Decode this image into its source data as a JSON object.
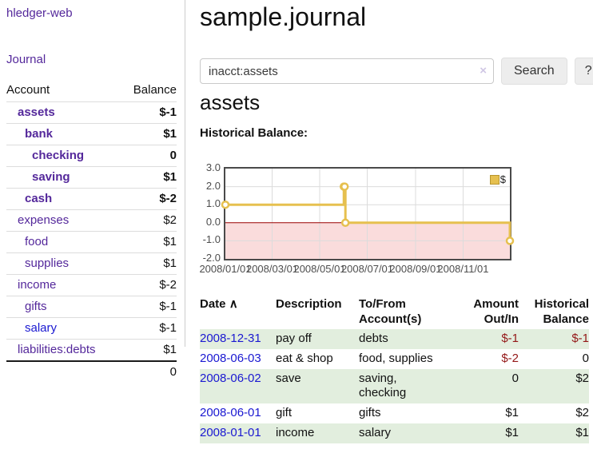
{
  "palette": {
    "link_purple": "#54289b",
    "link_blue": "#1a18d1",
    "negative_red": "#941818",
    "rose": "#b36b6d",
    "row_stripe_green": "#e2eede",
    "chart_gold": "#e6c04f",
    "chart_negative_fill": "#fadcdc",
    "chart_zero_line": "#990000"
  },
  "sidebar": {
    "brand": "hledger-web",
    "journal_link": "Journal",
    "accounts": {
      "headers": {
        "account": "Account",
        "balance": "Balance"
      },
      "rows": [
        {
          "label": "assets",
          "depth": 1,
          "bold": true,
          "link_color": "purple",
          "balance": "$-1",
          "balance_color": "neg"
        },
        {
          "label": "bank",
          "depth": 2,
          "bold": true,
          "link_color": "purple",
          "balance": "$1",
          "balance_color": ""
        },
        {
          "label": "checking",
          "depth": 3,
          "bold": true,
          "link_color": "purple",
          "balance": "0",
          "balance_color": ""
        },
        {
          "label": "saving",
          "depth": 3,
          "bold": true,
          "link_color": "purple",
          "balance": "$1",
          "balance_color": ""
        },
        {
          "label": "cash",
          "depth": 2,
          "bold": true,
          "link_color": "purple",
          "balance": "$-2",
          "balance_color": "neg"
        },
        {
          "label": "expenses",
          "depth": 1,
          "bold": false,
          "link_color": "purple",
          "balance": "$2",
          "balance_color": ""
        },
        {
          "label": "food",
          "depth": 2,
          "bold": false,
          "link_color": "purple",
          "balance": "$1",
          "balance_color": ""
        },
        {
          "label": "supplies",
          "depth": 2,
          "bold": false,
          "link_color": "purple",
          "balance": "$1",
          "balance_color": ""
        },
        {
          "label": "income",
          "depth": 1,
          "bold": false,
          "link_color": "purple",
          "balance": "$-2",
          "balance_color": "rose"
        },
        {
          "label": "gifts",
          "depth": 2,
          "bold": false,
          "link_color": "purple",
          "balance": "$-1",
          "balance_color": "rose"
        },
        {
          "label": "salary",
          "depth": 2,
          "bold": false,
          "link_color": "blue",
          "balance": "$-1",
          "balance_color": "rose"
        },
        {
          "label": "liabilities:debts",
          "depth": 1,
          "bold": false,
          "link_color": "purple",
          "balance": "$1",
          "balance_color": ""
        }
      ],
      "total": "0"
    }
  },
  "main": {
    "title": "sample.journal",
    "search": {
      "value": "inacct:assets",
      "clear_icon": "×",
      "search_button": "Search",
      "help_button": "?"
    },
    "account_heading": "assets",
    "section_label": "Historical Balance:"
  },
  "chart_data": {
    "type": "line",
    "step": true,
    "title": "Historical Balance",
    "legend": [
      {
        "label": "$",
        "color": "#e6c04f"
      }
    ],
    "series": [
      {
        "name": "$",
        "points": [
          {
            "date": "2008-01-01",
            "value": 1
          },
          {
            "date": "2008-06-01",
            "value": 2
          },
          {
            "date": "2008-06-02",
            "value": 2
          },
          {
            "date": "2008-06-03",
            "value": 0
          },
          {
            "date": "2008-12-31",
            "value": -1
          }
        ]
      }
    ],
    "x_range": [
      "2008-01-01",
      "2008-12-31"
    ],
    "ylim": [
      -2,
      3
    ],
    "yticks": [
      "3.0",
      "2.0",
      "1.0",
      "0.0",
      "-1.0",
      "-2.0"
    ],
    "xticks": [
      "2008/01/01",
      "2008/03/01",
      "2008/05/01",
      "2008/07/01",
      "2008/09/01",
      "2008/11/01"
    ],
    "grid": true,
    "legend_position": "top-right",
    "line_color": "#e6c04f",
    "negative_fill": "#fadcdc",
    "zero_line_color": "#990000"
  },
  "register": {
    "headers": {
      "date": {
        "line1": "Date",
        "sort_icon": "∧"
      },
      "description": {
        "line1": "Description"
      },
      "accounts": {
        "line1": "To/From",
        "line2": "Account(s)"
      },
      "amount": {
        "line1": "Amount",
        "line2": "Out/In"
      },
      "balance": {
        "line1": "Historical",
        "line2": "Balance"
      }
    },
    "rows": [
      {
        "date": "2008-12-31",
        "description": "pay off",
        "accounts": "debts",
        "amount": "$-1",
        "amount_color": "neg",
        "balance": "$-1",
        "balance_color": "neg"
      },
      {
        "date": "2008-06-03",
        "description": "eat & shop",
        "accounts": "food, supplies",
        "amount": "$-2",
        "amount_color": "neg",
        "balance": "0",
        "balance_color": ""
      },
      {
        "date": "2008-06-02",
        "description": "save",
        "accounts": "saving, checking",
        "amount": "0",
        "amount_color": "",
        "balance": "$2",
        "balance_color": ""
      },
      {
        "date": "2008-06-01",
        "description": "gift",
        "accounts": "gifts",
        "amount": "$1",
        "amount_color": "",
        "balance": "$2",
        "balance_color": ""
      },
      {
        "date": "2008-01-01",
        "description": "income",
        "accounts": "salary",
        "amount": "$1",
        "amount_color": "",
        "balance": "$1",
        "balance_color": ""
      }
    ]
  }
}
